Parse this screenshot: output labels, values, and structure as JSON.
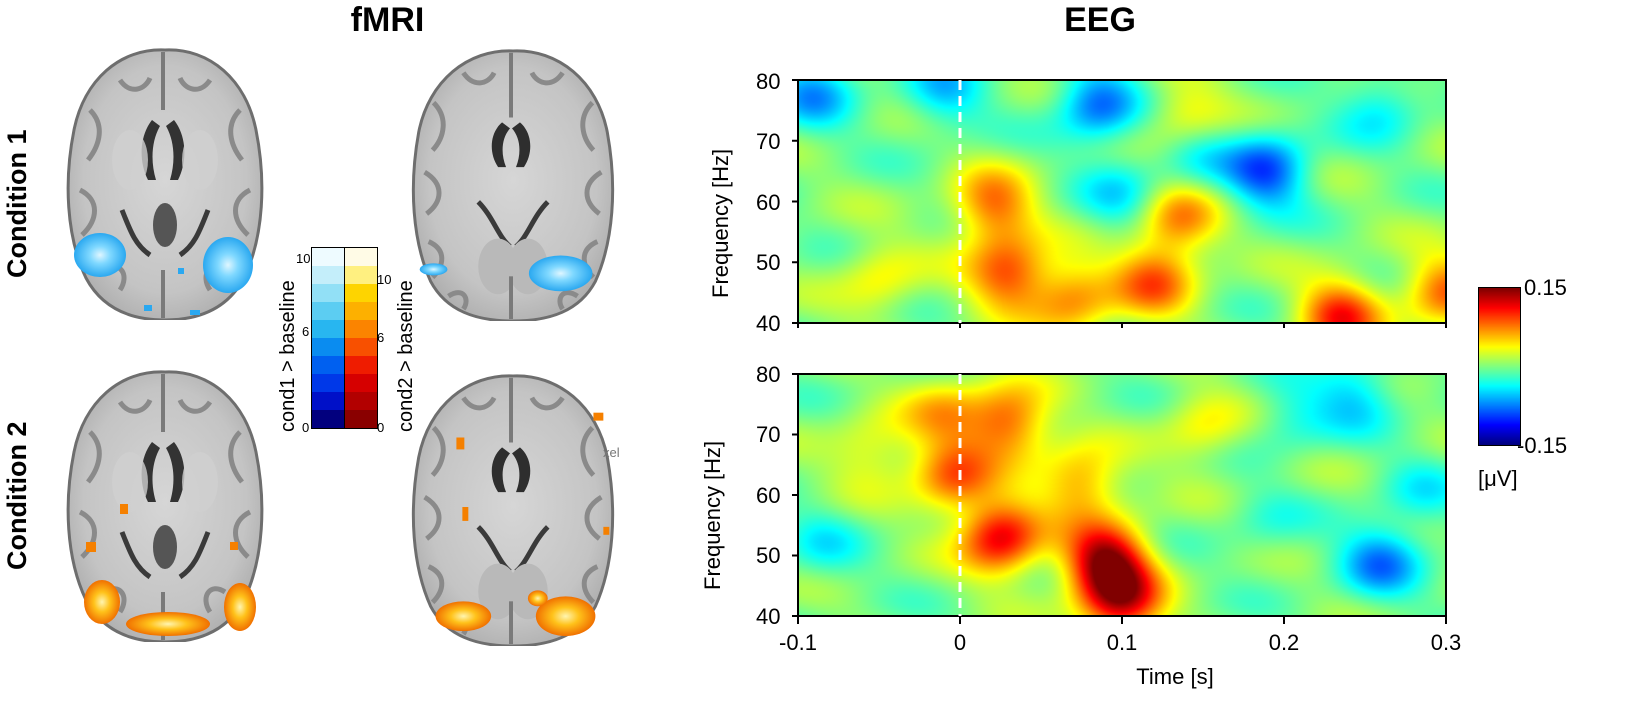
{
  "fmri": {
    "title": "fMRI",
    "rows": [
      {
        "label": "Condition 1",
        "contrast": "cond1 > baseline",
        "activation": "blue"
      },
      {
        "label": "Condition 2",
        "contrast": "cond2 > baseline",
        "activation": "hot"
      }
    ],
    "colorbars": [
      {
        "label": "cond1 > baseline",
        "ticks": [
          "10",
          "6",
          "0"
        ],
        "colors": [
          "#02007e",
          "#0010c8",
          "#0038e8",
          "#0060f0",
          "#0a8cf0",
          "#28b6f0",
          "#5ccdf2",
          "#92e0f6",
          "#c4eefa",
          "#eefbff"
        ]
      },
      {
        "label": "cond2 > baseline",
        "ticks": [
          "10",
          "6",
          "0"
        ],
        "colors": [
          "#8a0000",
          "#b20000",
          "#d60000",
          "#ef1c00",
          "#f85000",
          "#fb8400",
          "#fdb000",
          "#fed400",
          "#fff080",
          "#fffbe6"
        ]
      }
    ],
    "stray_mark": "xel"
  },
  "eeg": {
    "title": "EEG",
    "colorbar": {
      "max": "0.15",
      "min": "-0.15",
      "unit": "[μV]"
    },
    "x_axis": {
      "label": "Time [s]",
      "ticks": [
        "-0.1",
        "0",
        "0.1",
        "0.2",
        "0.3"
      ]
    },
    "panels": [
      {
        "ylabel": "Frequency [Hz]",
        "yticks": [
          "80",
          "70",
          "60",
          "50",
          "40"
        ]
      },
      {
        "ylabel": "Frequency [Hz]",
        "yticks": [
          "80",
          "70",
          "60",
          "50",
          "40"
        ]
      }
    ]
  },
  "chart_data": [
    {
      "type": "heatmap",
      "title": "EEG",
      "panel": "Condition 1",
      "xlabel": "Time [s]",
      "ylabel": "Frequency [Hz]",
      "xlim": [
        -0.1,
        0.3
      ],
      "ylim": [
        40,
        80
      ],
      "clim": [
        -0.15,
        0.15
      ],
      "colorbar_label": "[μV]",
      "stimulus_onset_s": 0,
      "blobs": [
        {
          "t": 0.02,
          "f": 59,
          "value": 0.08
        },
        {
          "t": 0.03,
          "f": 48,
          "value": 0.09
        },
        {
          "t": 0.07,
          "f": 44,
          "value": 0.07
        },
        {
          "t": 0.12,
          "f": 47,
          "value": 0.08
        },
        {
          "t": 0.135,
          "f": 57,
          "value": 0.07
        },
        {
          "t": 0.14,
          "f": 74,
          "value": 0.05
        },
        {
          "t": 0.235,
          "f": 41,
          "value": 0.1
        },
        {
          "t": 0.3,
          "f": 45,
          "value": 0.08
        },
        {
          "t": -0.05,
          "f": 47,
          "value": 0.04
        },
        {
          "t": 0.085,
          "f": 76,
          "value": -0.08
        },
        {
          "t": 0.19,
          "f": 65,
          "value": -0.09
        },
        {
          "t": 0.145,
          "f": 68,
          "value": -0.04
        },
        {
          "t": -0.09,
          "f": 78,
          "value": -0.06
        },
        {
          "t": -0.01,
          "f": 78,
          "value": -0.05
        },
        {
          "t": 0.26,
          "f": 76,
          "value": -0.04
        },
        {
          "t": 0.1,
          "f": 61,
          "value": -0.04
        }
      ]
    },
    {
      "type": "heatmap",
      "title": "EEG",
      "panel": "Condition 2",
      "xlabel": "Time [s]",
      "ylabel": "Frequency [Hz]",
      "xlim": [
        -0.1,
        0.3
      ],
      "ylim": [
        40,
        80
      ],
      "clim": [
        -0.15,
        0.15
      ],
      "colorbar_label": "[μV]",
      "stimulus_onset_s": 0,
      "blobs": [
        {
          "t": 0.025,
          "f": 53,
          "value": 0.12
        },
        {
          "t": 0.03,
          "f": 72,
          "value": 0.09
        },
        {
          "t": 0.09,
          "f": 49,
          "value": 0.14
        },
        {
          "t": 0.1,
          "f": 42,
          "value": 0.11
        },
        {
          "t": 0.075,
          "f": 62,
          "value": 0.07
        },
        {
          "t": -0.005,
          "f": 63,
          "value": 0.08
        },
        {
          "t": -0.01,
          "f": 74,
          "value": 0.05
        },
        {
          "t": 0.15,
          "f": 71,
          "value": 0.04
        },
        {
          "t": -0.055,
          "f": 67,
          "value": 0.04
        },
        {
          "t": 0.26,
          "f": 49,
          "value": -0.07
        },
        {
          "t": 0.245,
          "f": 77,
          "value": -0.05
        },
        {
          "t": -0.085,
          "f": 52,
          "value": -0.03
        },
        {
          "t": 0.205,
          "f": 73,
          "value": -0.03
        },
        {
          "t": 0.285,
          "f": 60,
          "value": -0.03
        },
        {
          "t": 0.19,
          "f": 55,
          "value": -0.02
        }
      ]
    }
  ]
}
